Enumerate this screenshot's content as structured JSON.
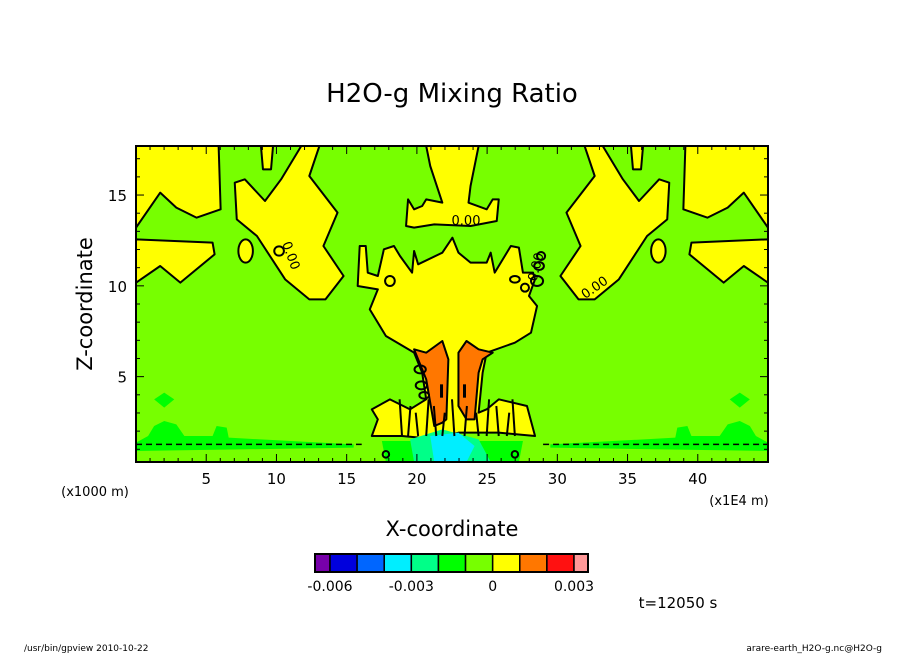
{
  "chart_data": {
    "type": "contour",
    "title": "H2O-g Mixing Ratio",
    "xlabel": "X-coordinate",
    "ylabel": "Z-coordinate",
    "x_unit": "(x1E4 m)",
    "y_unit": "(x1000 m)",
    "xlim": [
      0,
      45
    ],
    "ylim": [
      0.3,
      17.7
    ],
    "x_ticks": [
      5,
      10,
      15,
      20,
      25,
      30,
      35,
      40
    ],
    "y_ticks": [
      5,
      10,
      15
    ],
    "contour_labels": [
      "0.00",
      "0.00",
      "0.00",
      "0.00"
    ],
    "colorbar": {
      "levels": [
        -0.006,
        -0.005,
        -0.004,
        -0.003,
        -0.002,
        -0.001,
        0,
        0.001,
        0.002,
        0.003
      ],
      "tick_labels": [
        "-0.006",
        "-0.003",
        "0",
        "0.003"
      ],
      "colors": [
        "#7700aa",
        "#0000dd",
        "#0066ff",
        "#00eeff",
        "#00ff88",
        "#00ff00",
        "#77ff00",
        "#ffff00",
        "#ff7700",
        "#ff1111",
        "#ff9999"
      ]
    },
    "time_label": "t=12050 s"
  },
  "footer": {
    "left": "/usr/bin/gpview  2010-10-22",
    "right": "arare-earth_H2O-g.nc@H2O-g"
  }
}
